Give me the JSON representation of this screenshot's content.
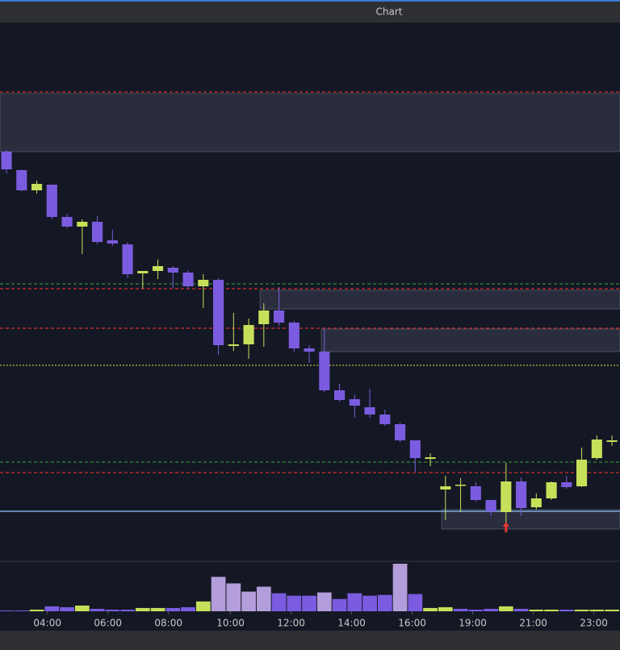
{
  "chart_data": {
    "type": "candlestick",
    "title": "Chart",
    "x": [
      0,
      1,
      2,
      3,
      4,
      5,
      6,
      7,
      8,
      9,
      10,
      11,
      12,
      13,
      14,
      15,
      16,
      17,
      18,
      19,
      20,
      21,
      22,
      23,
      24,
      25,
      26,
      27,
      28,
      29,
      30,
      31,
      32,
      33,
      34,
      35,
      36,
      37,
      38,
      39,
      40
    ],
    "open": [
      512,
      489,
      464,
      471,
      431,
      419,
      425,
      402,
      397,
      361,
      364,
      368,
      362,
      345,
      353,
      271,
      273,
      298,
      315,
      300,
      268,
      264,
      216,
      205,
      195,
      186,
      174,
      154,
      131,
      93,
      98,
      97,
      80,
      65,
      103,
      71,
      82,
      102,
      97,
      132,
      152
    ],
    "high": [
      514,
      490,
      476,
      471,
      435,
      428,
      432,
      415,
      400,
      364,
      378,
      370,
      365,
      360,
      355,
      312,
      305,
      324,
      344,
      302,
      272,
      292,
      224,
      210,
      218,
      192,
      176,
      154,
      138,
      110,
      107,
      102,
      80,
      126,
      108,
      88,
      103,
      110,
      145,
      160,
      160
    ],
    "low": [
      485,
      463,
      460,
      428,
      417,
      385,
      397,
      395,
      355,
      342,
      354,
      343,
      342,
      318,
      260,
      265,
      255,
      270,
      296,
      264,
      250,
      214,
      202,
      182,
      182,
      172,
      152,
      115,
      122,
      55,
      65,
      78,
      60,
      48,
      60,
      68,
      80,
      94,
      96,
      130,
      147
    ],
    "close": [
      490,
      464,
      472,
      431,
      419,
      425,
      400,
      398,
      360,
      364,
      370,
      362,
      345,
      353,
      272,
      273,
      297,
      315,
      300,
      268,
      264,
      216,
      204,
      197,
      186,
      174,
      154,
      132,
      133,
      97,
      99,
      80,
      66,
      103,
      70,
      82,
      102,
      96,
      130,
      155,
      154
    ],
    "up_color": "#c6e05a",
    "down_color": "#7b5ce0",
    "volume": [
      1,
      1,
      2,
      6,
      5,
      7,
      3,
      2,
      2,
      4,
      4,
      4,
      5,
      12,
      42,
      34,
      24,
      30,
      22,
      19,
      19,
      23,
      15,
      22,
      19,
      20,
      58,
      21,
      4,
      5,
      3,
      2,
      3,
      6,
      3,
      2,
      2,
      2,
      2,
      2,
      2
    ],
    "volume_colors": [
      "#7b5ce0",
      "#7b5ce0",
      "#c6e05a",
      "#7b5ce0",
      "#7b5ce0",
      "#c6e05a",
      "#7b5ce0",
      "#7b5ce0",
      "#7b5ce0",
      "#c6e05a",
      "#c6e05a",
      "#7b5ce0",
      "#7b5ce0",
      "#c6e05a",
      "#b39ddb",
      "#b39ddb",
      "#b39ddb",
      "#b39ddb",
      "#7b5ce0",
      "#7b5ce0",
      "#7b5ce0",
      "#b39ddb",
      "#7b5ce0",
      "#7b5ce0",
      "#7b5ce0",
      "#7b5ce0",
      "#b39ddb",
      "#7b5ce0",
      "#c6e05a",
      "#c6e05a",
      "#7b5ce0",
      "#7b5ce0",
      "#7b5ce0",
      "#c6e05a",
      "#7b5ce0",
      "#c6e05a",
      "#c6e05a",
      "#7b5ce0",
      "#c6e05a",
      "#c6e05a",
      "#c6e05a"
    ],
    "volume_ylim": [
      0,
      60
    ],
    "xlim": [
      -0.43,
      40.53
    ],
    "ylim": [
      5,
      672
    ],
    "xticks": [
      {
        "value": 2.7,
        "label": "04:00"
      },
      {
        "value": 6.7,
        "label": "06:00"
      },
      {
        "value": 10.7,
        "label": "08:00"
      },
      {
        "value": 14.8,
        "label": "10:00"
      },
      {
        "value": 18.8,
        "label": "12:00"
      },
      {
        "value": 22.8,
        "label": "14:00"
      },
      {
        "value": 26.8,
        "label": "16:00"
      },
      {
        "value": 30.8,
        "label": "19:00"
      },
      {
        "value": 34.8,
        "label": "21:00"
      },
      {
        "value": 38.8,
        "label": "23:00"
      }
    ],
    "levels": [
      {
        "value": 586,
        "color": "#d32f2f",
        "style": "dashed"
      },
      {
        "value": 342,
        "color": "#d32f2f",
        "style": "dashed"
      },
      {
        "value": 293,
        "color": "#d32f2f",
        "style": "dashed"
      },
      {
        "value": 114,
        "color": "#d32f2f",
        "style": "dashed"
      },
      {
        "value": 348,
        "color": "#2e8b3a",
        "style": "dashed"
      },
      {
        "value": 127,
        "color": "#2e8b3a",
        "style": "dashed"
      },
      {
        "value": 247,
        "color": "#b8c040",
        "style": "dotted"
      },
      {
        "value": 66,
        "color": "#7fa8e0",
        "style": "solid"
      }
    ],
    "zones": [
      {
        "x0": -0.43,
        "top": 584,
        "bottom": 512
      },
      {
        "x0": 16.75,
        "top": 340,
        "bottom": 317
      },
      {
        "x0": 20.8,
        "top": 292,
        "bottom": 264
      },
      {
        "x0": 28.75,
        "top": 68,
        "bottom": 44
      }
    ],
    "markers": [
      {
        "x": 33,
        "y": 40,
        "color": "#e53935"
      }
    ]
  }
}
